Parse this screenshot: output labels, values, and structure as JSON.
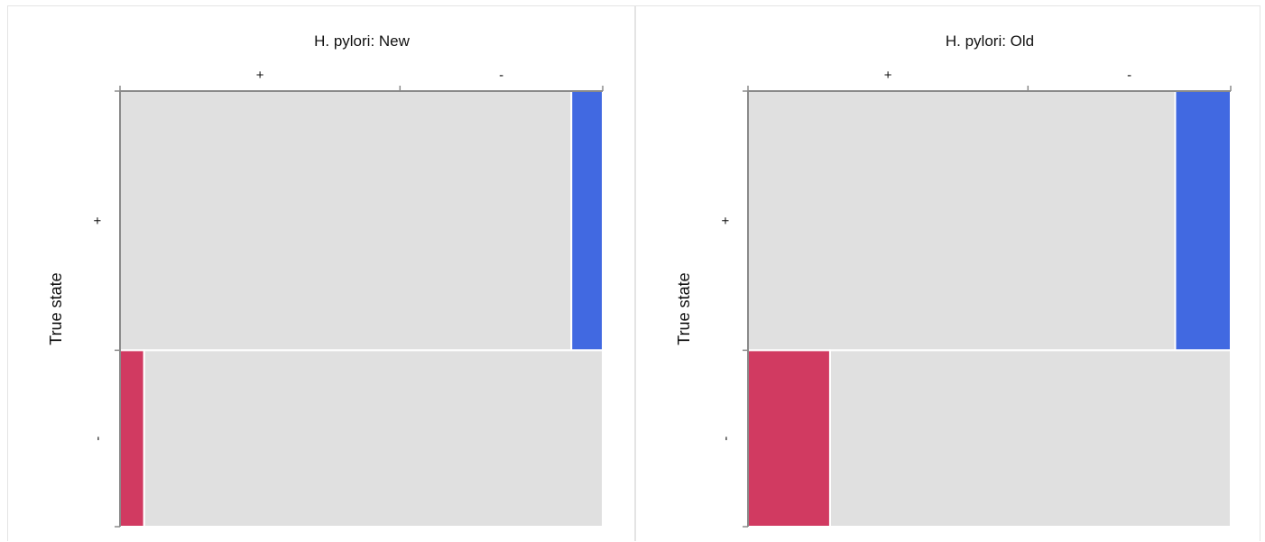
{
  "colors": {
    "cell": "#e0e0e0",
    "false_negative": "#4169e1",
    "false_positive": "#d13a61",
    "axis": "#8a8a8a",
    "separator": "#ffffff"
  },
  "chart_data": [
    {
      "type": "mosaic",
      "title": "H. pylori: New",
      "xlabel": "",
      "ylabel": "True state",
      "x_categories": [
        "+",
        "-"
      ],
      "y_categories": [
        "+",
        "-"
      ],
      "row_proportions": [
        0.595,
        0.405
      ],
      "cells": [
        {
          "row": "+",
          "col": "+",
          "fraction_of_row": 0.935
        },
        {
          "row": "+",
          "col": "-",
          "fraction_of_row": 0.065
        },
        {
          "row": "-",
          "col": "+",
          "fraction_of_row": 0.05
        },
        {
          "row": "-",
          "col": "-",
          "fraction_of_row": 0.95
        }
      ],
      "highlighted_cells": [
        "false_negative: row + / col -",
        "false_positive: row - / col +"
      ]
    },
    {
      "type": "mosaic",
      "title": "H. pylori: Old",
      "xlabel": "",
      "ylabel": "True state",
      "x_categories": [
        "+",
        "-"
      ],
      "y_categories": [
        "+",
        "-"
      ],
      "row_proportions": [
        0.595,
        0.405
      ],
      "cells": [
        {
          "row": "+",
          "col": "+",
          "fraction_of_row": 0.885
        },
        {
          "row": "+",
          "col": "-",
          "fraction_of_row": 0.115
        },
        {
          "row": "-",
          "col": "+",
          "fraction_of_row": 0.17
        },
        {
          "row": "-",
          "col": "-",
          "fraction_of_row": 0.83
        }
      ],
      "highlighted_cells": [
        "false_negative: row + / col -",
        "false_positive: row - / col +"
      ]
    }
  ]
}
